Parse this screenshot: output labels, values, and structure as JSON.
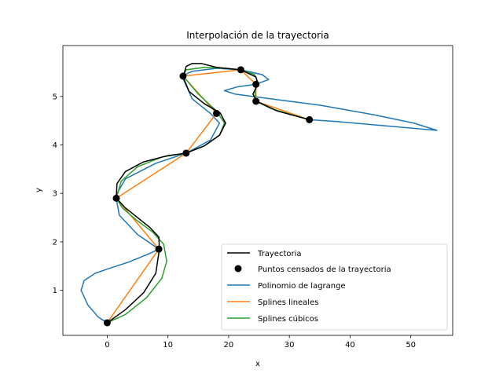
{
  "chart_data": {
    "type": "line",
    "title": "Interpolación de la trayectoria",
    "xlabel": "x",
    "ylabel": "y",
    "xlim": [
      -7.3,
      56.9
    ],
    "ylim": [
      0.07,
      6.05
    ],
    "xticks": [
      0,
      10,
      20,
      30,
      40,
      50
    ],
    "yticks": [
      1,
      2,
      3,
      4,
      5
    ],
    "grid": false,
    "legend_position": "lower-right",
    "colors": {
      "trayectoria": "#000000",
      "puntos": "#000000",
      "lagrange": "#1f77b4",
      "lineales": "#ff7f0e",
      "cubicos": "#2ca02c"
    },
    "series": [
      {
        "name": "Trayectoria",
        "kind": "line",
        "x": [
          0,
          3,
          6,
          8,
          8.6,
          8.5,
          7,
          5,
          3,
          1.5,
          1.6,
          3,
          6,
          10,
          13,
          16,
          18.5,
          19.5,
          18.6,
          16,
          13.5,
          12.5,
          13,
          14,
          15.5,
          18,
          22,
          24.5,
          24.8,
          24,
          24.6,
          28,
          33.3
        ],
        "y": [
          0.33,
          0.6,
          0.95,
          1.35,
          1.85,
          2.1,
          2.3,
          2.5,
          2.7,
          2.9,
          3.2,
          3.45,
          3.65,
          3.78,
          3.83,
          3.98,
          4.2,
          4.45,
          4.66,
          4.85,
          5.1,
          5.4,
          5.62,
          5.68,
          5.68,
          5.6,
          5.55,
          5.4,
          5.25,
          5.05,
          4.9,
          4.7,
          4.52
        ]
      },
      {
        "name": "Puntos censados de la trayectoria",
        "kind": "scatter",
        "x": [
          0,
          8.5,
          1.5,
          13,
          18,
          12.5,
          22,
          24.5,
          24.5,
          33.3
        ],
        "y": [
          0.33,
          1.85,
          2.9,
          3.83,
          4.65,
          5.42,
          5.55,
          5.25,
          4.9,
          4.52
        ]
      },
      {
        "name": "Polinomio de lagrange",
        "kind": "line",
        "x": [
          0,
          -1.5,
          -3.2,
          -4.3,
          -3.8,
          -2,
          0.3,
          3.5,
          7,
          8.5,
          5,
          2,
          1.4,
          3,
          8,
          13,
          17,
          18.5,
          17,
          14,
          12.3,
          14,
          18,
          22,
          25.5,
          26.6,
          24.5,
          21.5,
          19.3,
          21,
          27,
          35,
          44,
          50.5,
          54.3,
          47,
          38,
          33.3
        ],
        "y": [
          0.33,
          0.45,
          0.7,
          1.0,
          1.2,
          1.35,
          1.45,
          1.58,
          1.76,
          1.85,
          2.15,
          2.55,
          2.95,
          3.3,
          3.62,
          3.83,
          4.1,
          4.45,
          4.65,
          4.95,
          5.42,
          5.52,
          5.58,
          5.55,
          5.45,
          5.35,
          5.25,
          5.2,
          5.12,
          5.05,
          4.95,
          4.82,
          4.62,
          4.45,
          4.3,
          4.38,
          4.48,
          4.52
        ]
      },
      {
        "name": "Splines lineales",
        "kind": "line",
        "x": [
          0,
          8.5,
          1.5,
          13,
          18,
          12.5,
          22,
          24.5,
          24.5,
          33.3
        ],
        "y": [
          0.33,
          1.85,
          2.9,
          3.83,
          4.65,
          5.42,
          5.55,
          5.25,
          4.9,
          4.52
        ]
      },
      {
        "name": "Splines cúbicos",
        "kind": "line",
        "x": [
          0,
          3,
          6.5,
          9,
          9.8,
          9.3,
          7.5,
          4.8,
          2.5,
          1.5,
          2.3,
          5,
          9,
          13,
          16,
          18.5,
          19.3,
          18,
          15,
          12.5,
          13,
          16,
          19.5,
          22,
          24.3,
          24.8,
          24.3,
          24.5,
          27,
          30.5,
          33.3
        ],
        "y": [
          0.33,
          0.5,
          0.85,
          1.25,
          1.6,
          1.95,
          2.2,
          2.45,
          2.7,
          2.9,
          3.25,
          3.55,
          3.75,
          3.83,
          3.98,
          4.2,
          4.45,
          4.7,
          5.05,
          5.42,
          5.55,
          5.6,
          5.58,
          5.55,
          5.45,
          5.3,
          5.1,
          4.9,
          4.75,
          4.62,
          4.52
        ]
      }
    ]
  }
}
